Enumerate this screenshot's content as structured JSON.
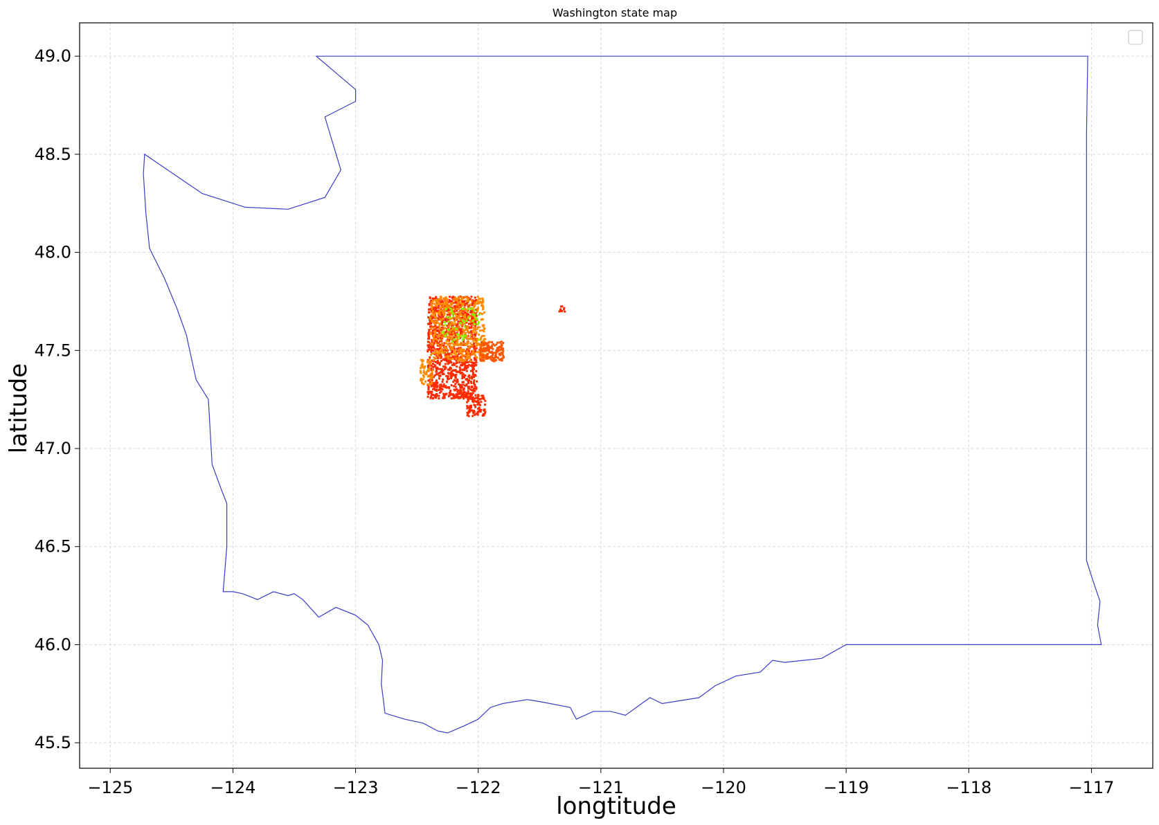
{
  "chart_data": {
    "type": "scatter",
    "title": "Washington state map",
    "xlabel": "longtitude",
    "ylabel": "latitude",
    "xlim": [
      -125.25,
      -116.5
    ],
    "ylim": [
      45.37,
      49.17
    ],
    "x_ticks": [
      -125,
      -124,
      -123,
      -122,
      -121,
      -120,
      -119,
      -118,
      -117
    ],
    "x_tick_labels": [
      "−125",
      "−124",
      "−123",
      "−122",
      "−121",
      "−120",
      "−119",
      "−118",
      "−117"
    ],
    "y_ticks": [
      45.5,
      46.0,
      46.5,
      47.0,
      47.5,
      48.0,
      48.5,
      49.0
    ],
    "y_tick_labels": [
      "45.5",
      "46.0",
      "46.5",
      "47.0",
      "47.5",
      "48.0",
      "48.5",
      "49.0"
    ],
    "grid": true,
    "legend": "top-right (empty)",
    "colors": {
      "outline": "#3a3ac8",
      "grid": "#d9d9d9",
      "points_dominant": "#ff2a00",
      "points_secondary": "#ff8c00",
      "points_highlight": "#7fff00"
    },
    "state_outline": [
      [
        -123.32,
        49.0
      ],
      [
        -122.0,
        49.0
      ],
      [
        -121.0,
        49.0
      ],
      [
        -120.0,
        49.0
      ],
      [
        -119.0,
        49.0
      ],
      [
        -118.0,
        49.0
      ],
      [
        -117.03,
        49.0
      ],
      [
        -117.04,
        48.6
      ],
      [
        -117.04,
        48.0
      ],
      [
        -117.04,
        47.5
      ],
      [
        -117.04,
        47.0
      ],
      [
        -117.04,
        46.6
      ],
      [
        -117.04,
        46.43
      ],
      [
        -117.0,
        46.35
      ],
      [
        -116.93,
        46.22
      ],
      [
        -116.95,
        46.1
      ],
      [
        -116.92,
        46.0
      ],
      [
        -117.5,
        46.0
      ],
      [
        -118.0,
        46.0
      ],
      [
        -119.0,
        46.0
      ],
      [
        -119.2,
        45.93
      ],
      [
        -119.5,
        45.91
      ],
      [
        -119.6,
        45.92
      ],
      [
        -119.7,
        45.86
      ],
      [
        -119.9,
        45.84
      ],
      [
        -120.07,
        45.79
      ],
      [
        -120.2,
        45.73
      ],
      [
        -120.5,
        45.7
      ],
      [
        -120.6,
        45.73
      ],
      [
        -120.8,
        45.64
      ],
      [
        -120.92,
        45.66
      ],
      [
        -121.06,
        45.66
      ],
      [
        -121.2,
        45.62
      ],
      [
        -121.25,
        45.68
      ],
      [
        -121.5,
        45.71
      ],
      [
        -121.6,
        45.72
      ],
      [
        -121.8,
        45.7
      ],
      [
        -121.9,
        45.68
      ],
      [
        -122.0,
        45.62
      ],
      [
        -122.1,
        45.59
      ],
      [
        -122.25,
        45.55
      ],
      [
        -122.33,
        45.56
      ],
      [
        -122.45,
        45.6
      ],
      [
        -122.6,
        45.62
      ],
      [
        -122.76,
        45.65
      ],
      [
        -122.79,
        45.8
      ],
      [
        -122.78,
        45.92
      ],
      [
        -122.81,
        46.0
      ],
      [
        -122.9,
        46.1
      ],
      [
        -123.0,
        46.15
      ],
      [
        -123.16,
        46.19
      ],
      [
        -123.3,
        46.14
      ],
      [
        -123.43,
        46.23
      ],
      [
        -123.5,
        46.26
      ],
      [
        -123.55,
        46.25
      ],
      [
        -123.67,
        46.27
      ],
      [
        -123.8,
        46.23
      ],
      [
        -123.92,
        46.26
      ],
      [
        -124.0,
        46.27
      ],
      [
        -124.08,
        46.27
      ],
      [
        -124.05,
        46.5
      ],
      [
        -124.05,
        46.72
      ],
      [
        -124.1,
        46.8
      ],
      [
        -124.17,
        46.92
      ],
      [
        -124.2,
        47.25
      ],
      [
        -124.3,
        47.35
      ],
      [
        -124.38,
        47.58
      ],
      [
        -124.46,
        47.72
      ],
      [
        -124.56,
        47.87
      ],
      [
        -124.68,
        48.02
      ],
      [
        -124.71,
        48.2
      ],
      [
        -124.73,
        48.4
      ],
      [
        -124.72,
        48.5
      ],
      [
        -124.25,
        48.3
      ],
      [
        -123.9,
        48.23
      ],
      [
        -123.55,
        48.22
      ],
      [
        -123.25,
        48.28
      ],
      [
        -123.12,
        48.42
      ],
      [
        -123.25,
        48.69
      ],
      [
        -123.0,
        48.77
      ],
      [
        -123.0,
        48.83
      ],
      [
        -123.32,
        49.0
      ]
    ],
    "point_clusters": [
      {
        "lon_range": [
          -122.42,
          -122.02
        ],
        "lat_range": [
          47.26,
          47.78
        ],
        "color": "#ff2a00",
        "count": 1200
      },
      {
        "lon_range": [
          -122.4,
          -121.95
        ],
        "lat_range": [
          47.45,
          47.78
        ],
        "color": "#ff8c00",
        "count": 500
      },
      {
        "lon_range": [
          -122.3,
          -122.0
        ],
        "lat_range": [
          47.55,
          47.72
        ],
        "color": "#7fff00",
        "count": 50
      },
      {
        "lon_range": [
          -122.0,
          -121.8
        ],
        "lat_range": [
          47.45,
          47.55
        ],
        "color": "#ff5500",
        "count": 150
      },
      {
        "lon_range": [
          -122.1,
          -121.95
        ],
        "lat_range": [
          47.17,
          47.28
        ],
        "color": "#ff2a00",
        "count": 100
      },
      {
        "lon_range": [
          -122.48,
          -122.38
        ],
        "lat_range": [
          47.33,
          47.46
        ],
        "color": "#ff8c00",
        "count": 60
      },
      {
        "lon_range": [
          -121.35,
          -121.3
        ],
        "lat_range": [
          47.7,
          47.73
        ],
        "color": "#ff2a00",
        "count": 10
      }
    ]
  }
}
